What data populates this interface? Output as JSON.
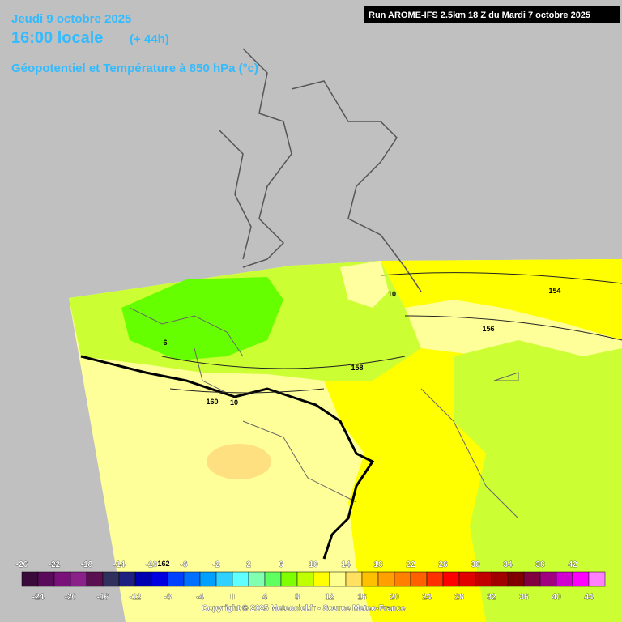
{
  "header": {
    "date": "Jeudi 9 octobre 2025",
    "time": "16:00 locale",
    "lead": "(+ 44h)",
    "field": "Géopotentiel et Température à 850 hPa (°c)",
    "run": "Run AROME-IFS 2.5km 18 Z du Mardi 7 octobre 2025"
  },
  "contour_labels": [
    "154",
    "156",
    "158",
    "160",
    "10",
    "6",
    "10",
    "162"
  ],
  "legend": {
    "ticks": [
      -26,
      -24,
      -22,
      -20,
      -18,
      -16,
      -14,
      -12,
      -10,
      -8,
      -6,
      -4,
      -2,
      0,
      2,
      4,
      6,
      8,
      10,
      12,
      14,
      16,
      18,
      20,
      22,
      24,
      26,
      28,
      30,
      32,
      34,
      36,
      38,
      40,
      42,
      44
    ],
    "colors": [
      "#3a0a3a",
      "#5a0a5a",
      "#7a107a",
      "#8a208a",
      "#5a1050",
      "#30305e",
      "#202080",
      "#0000b0",
      "#0000e0",
      "#0040ff",
      "#0070ff",
      "#00a0ff",
      "#30d0ff",
      "#60ffff",
      "#80ffb0",
      "#60ff60",
      "#80ff00",
      "#c0ff00",
      "#ffff00",
      "#ffff90",
      "#ffe060",
      "#ffc000",
      "#ffa000",
      "#ff8000",
      "#ff6000",
      "#ff3000",
      "#ff0000",
      "#e00000",
      "#c00000",
      "#a00000",
      "#800000",
      "#800040",
      "#a00080",
      "#d000d0",
      "#ff00ff",
      "#ff80ff"
    ]
  },
  "footer": {
    "copyright": "Copyright © 2025 Meteociel.fr - Source Meteo-France"
  }
}
